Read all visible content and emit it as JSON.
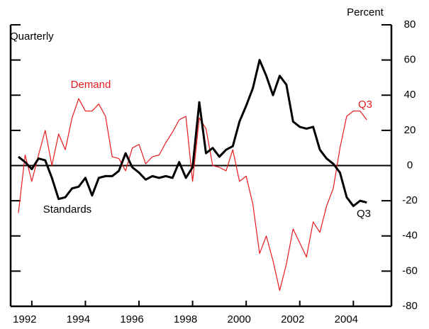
{
  "chart_data": {
    "type": "line",
    "y_label": "Percent",
    "subtitle": "Quarterly",
    "x": [
      1991.5,
      1991.75,
      1992,
      1992.25,
      1992.5,
      1992.75,
      1993,
      1993.25,
      1993.5,
      1993.75,
      1994,
      1994.25,
      1994.5,
      1994.75,
      1995,
      1995.25,
      1995.5,
      1995.75,
      1996,
      1996.25,
      1996.5,
      1996.75,
      1997,
      1997.25,
      1997.5,
      1997.75,
      1998,
      1998.25,
      1998.5,
      1998.75,
      1999,
      1999.25,
      1999.5,
      1999.75,
      2000,
      2000.25,
      2000.5,
      2000.75,
      2001,
      2001.25,
      2001.5,
      2001.75,
      2002,
      2002.25,
      2002.5,
      2002.75,
      2003,
      2003.25,
      2003.5,
      2003.75,
      2004,
      2004.25,
      2004.5
    ],
    "series": [
      {
        "name": "Demand",
        "color": "#e8191e",
        "values": [
          -27,
          6,
          -9,
          6,
          20,
          0,
          18,
          9,
          27,
          38,
          31,
          31,
          35,
          28,
          5,
          4,
          -3,
          10,
          12,
          1,
          5,
          6,
          13,
          19,
          26,
          28,
          -9,
          27,
          21,
          0,
          -1,
          -3,
          9,
          -9,
          -6,
          -22,
          -50,
          -40,
          -54,
          -71,
          -56,
          -36,
          -44,
          -52,
          -32,
          -38,
          -23,
          -13,
          10,
          28,
          31,
          31,
          26
        ]
      },
      {
        "name": "Standards",
        "color": "#000000",
        "values": [
          5,
          2,
          -2,
          4,
          3,
          -7,
          -19,
          -18,
          -13,
          -12,
          -7,
          -17,
          -7,
          -6,
          -6,
          -3,
          7,
          -1,
          -4,
          -8,
          -6,
          -7,
          -6,
          -7,
          2,
          -7,
          -1,
          36,
          7,
          10,
          5,
          9,
          11,
          25,
          34,
          44,
          60,
          51,
          40,
          51,
          46,
          25,
          22,
          21,
          22,
          9,
          4,
          1,
          -4,
          -18,
          -23,
          -20,
          -21
        ]
      }
    ],
    "annotations": [
      "Q3",
      "Q3"
    ],
    "xlim": [
      1991.21,
      2005.42
    ],
    "xticks": [
      1992,
      1994,
      1996,
      1998,
      2000,
      2002,
      2004
    ],
    "ylim": [
      -80,
      80
    ],
    "yticks": [
      -80,
      -60,
      -40,
      -20,
      0,
      20,
      40,
      60,
      80
    ]
  }
}
